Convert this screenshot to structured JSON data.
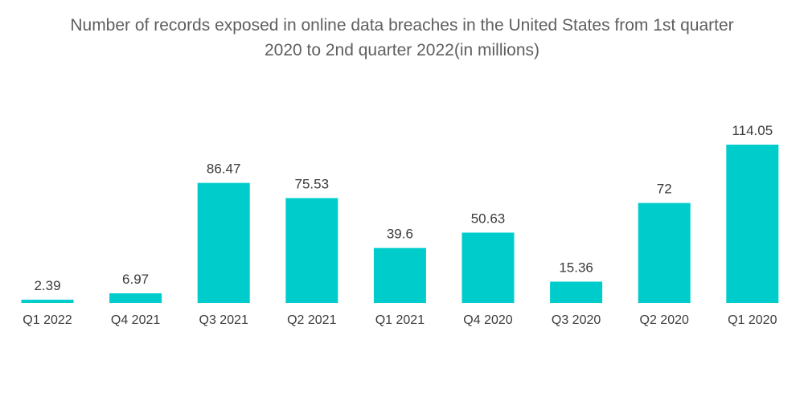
{
  "chart_data": {
    "type": "bar",
    "title_lines": [
      "Number of records exposed in online data breaches in the United States from 1st quarter",
      "2020 to 2nd quarter 2022(in millions)"
    ],
    "categories": [
      "Q1 2022",
      "Q4 2021",
      "Q3 2021",
      "Q2 2021",
      "Q1 2021",
      "Q4 2020",
      "Q3 2020",
      "Q2 2020",
      "Q1 2020"
    ],
    "values": [
      2.39,
      6.97,
      86.47,
      75.53,
      39.6,
      50.63,
      15.36,
      72,
      114.05
    ],
    "value_labels": [
      "2.39",
      "6.97",
      "86.47",
      "75.53",
      "39.6",
      "50.63",
      "15.36",
      "72",
      "114.05"
    ],
    "xlabel": "",
    "ylabel": "",
    "ylim": [
      0,
      114.05
    ],
    "grid": false,
    "bar_color": "#00cccc"
  }
}
